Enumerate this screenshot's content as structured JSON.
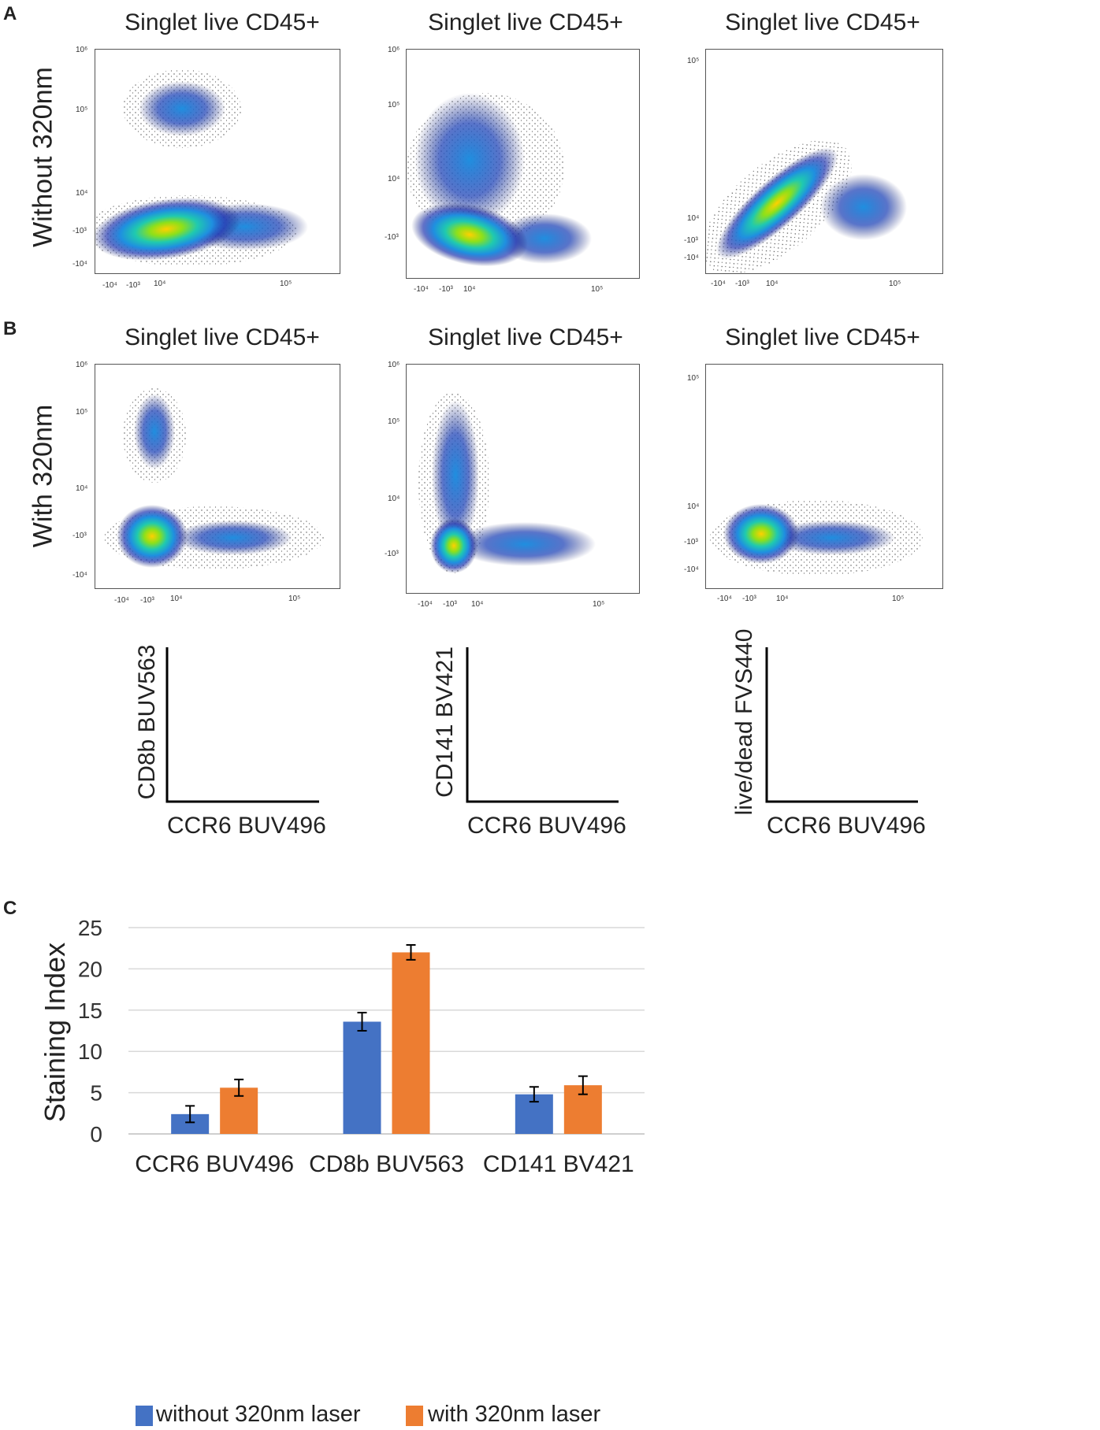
{
  "panel_a": {
    "letter": "A",
    "row_label": "Without 320nm",
    "titles": [
      "Singlet live CD45+",
      "Singlet live CD45+",
      "Singlet live CD45+"
    ]
  },
  "panel_b": {
    "letter": "B",
    "row_label": "With 320nm",
    "titles": [
      "Singlet live CD45+",
      "Singlet live CD45+",
      "Singlet live CD45+"
    ]
  },
  "axis_keys": [
    {
      "y": "CD8b BUV563",
      "x": "CCR6 BUV496"
    },
    {
      "y": "CD141 BV421",
      "x": "CCR6 BUV496"
    },
    {
      "y": "live/dead FVS440",
      "x": "CCR6 BUV496"
    }
  ],
  "ticks": {
    "x": [
      "-10⁴",
      "-10³",
      "10⁴",
      "10⁵"
    ],
    "y_5": [
      "10⁶",
      "10⁵",
      "10⁴",
      "-10³",
      "-10⁴"
    ],
    "y_4": [
      "10⁵",
      "10⁴",
      "-10³",
      "-10⁴"
    ]
  },
  "panel_c": {
    "letter": "C"
  },
  "chart_data": {
    "type": "bar",
    "title": "",
    "xlabel": "",
    "ylabel": "Staining Index",
    "ylim": [
      0,
      25
    ],
    "yticks": [
      0,
      5,
      10,
      15,
      20,
      25
    ],
    "categories": [
      "CCR6 BUV496",
      "CD8b BUV563",
      "CD141 BV421"
    ],
    "series": [
      {
        "name": "without 320nm laser",
        "color": "#4472c4",
        "values": [
          2.4,
          13.6,
          4.8
        ],
        "errors": [
          1.0,
          1.1,
          0.9
        ]
      },
      {
        "name": "with 320nm laser",
        "color": "#ed7d31",
        "values": [
          5.6,
          22.0,
          5.9
        ],
        "errors": [
          1.0,
          0.9,
          1.1
        ]
      }
    ],
    "grid": true,
    "legend": "bottom"
  }
}
